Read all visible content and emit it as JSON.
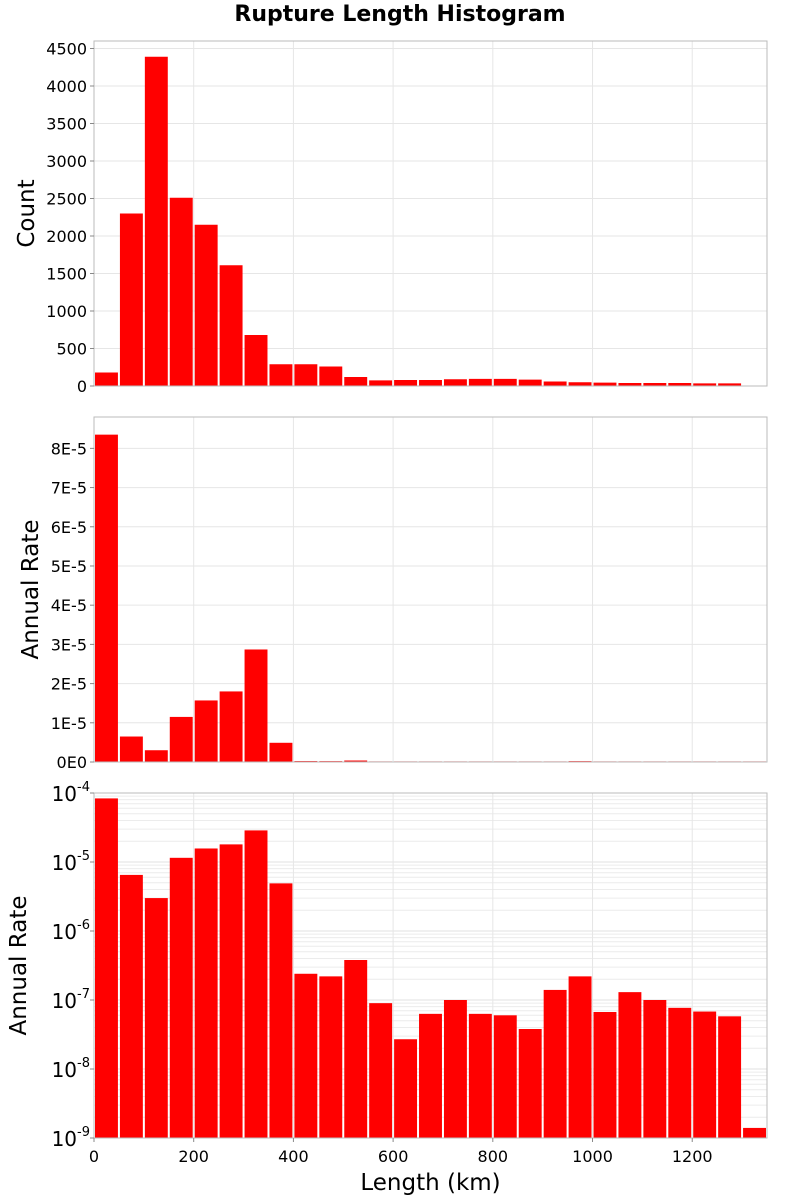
{
  "chart_data": {
    "title": "Rupture Length Histogram",
    "type": "bar",
    "xlabel": "Length (km)",
    "xlim": [
      0,
      1350
    ],
    "x_tick_values": [
      0,
      200,
      400,
      600,
      800,
      1000,
      1200
    ],
    "x_tick_labels": [
      "0",
      "200",
      "400",
      "600",
      "800",
      "1000",
      "1200"
    ],
    "bin_width": 50,
    "bin_starts": [
      0,
      50,
      100,
      150,
      200,
      250,
      300,
      350,
      400,
      450,
      500,
      550,
      600,
      650,
      700,
      750,
      800,
      850,
      900,
      950,
      1000,
      1050,
      1100,
      1150,
      1200,
      1250,
      1300
    ],
    "bar_color": "#ff0000",
    "panels": [
      {
        "name": "count",
        "ylabel": "Count",
        "scale": "linear",
        "ylim": [
          0,
          4600
        ],
        "y_tick_values": [
          0,
          500,
          1000,
          1500,
          2000,
          2500,
          3000,
          3500,
          4000,
          4500
        ],
        "y_tick_labels": [
          "0",
          "500",
          "1000",
          "1500",
          "2000",
          "2500",
          "3000",
          "3500",
          "4000",
          "4500"
        ],
        "values": [
          180,
          2300,
          4390,
          2510,
          2150,
          1610,
          680,
          290,
          290,
          260,
          120,
          75,
          80,
          80,
          90,
          95,
          95,
          85,
          60,
          50,
          45,
          40,
          40,
          40,
          35,
          35,
          0
        ]
      },
      {
        "name": "annual-rate-linear",
        "ylabel": "Annual Rate",
        "scale": "linear",
        "ylim": [
          0,
          8.8e-05
        ],
        "y_tick_values": [
          0,
          1e-05,
          2e-05,
          3e-05,
          4e-05,
          5e-05,
          6e-05,
          7e-05,
          8e-05
        ],
        "y_tick_labels": [
          "0E0",
          "1E-5",
          "2E-5",
          "3E-5",
          "4E-5",
          "5E-5",
          "6E-5",
          "7E-5",
          "8E-5"
        ],
        "values": [
          8.35e-05,
          6.5e-06,
          3e-06,
          1.15e-05,
          1.57e-05,
          1.8e-05,
          2.87e-05,
          4.9e-06,
          2.4e-07,
          2.2e-07,
          3.8e-07,
          9e-08,
          2.7e-08,
          6.3e-08,
          1e-07,
          6.3e-08,
          6e-08,
          3.8e-08,
          1.4e-07,
          2.2e-07,
          6.7e-08,
          1.3e-07,
          1e-07,
          7.7e-08,
          6.8e-08,
          5.8e-08,
          1.4e-09
        ]
      },
      {
        "name": "annual-rate-log",
        "ylabel": "Annual Rate",
        "scale": "log",
        "ylim": [
          1e-09,
          0.0001
        ],
        "y_tick_values": [
          0.0001,
          1e-05,
          1e-06,
          1e-07,
          1e-08,
          1e-09
        ],
        "y_tick_bases": [
          "10",
          "10",
          "10",
          "10",
          "10",
          "10"
        ],
        "y_tick_exponents": [
          "-4",
          "-5",
          "-6",
          "-7",
          "-8",
          "-9"
        ],
        "values": [
          8.35e-05,
          6.5e-06,
          3e-06,
          1.15e-05,
          1.57e-05,
          1.8e-05,
          2.87e-05,
          4.9e-06,
          2.4e-07,
          2.2e-07,
          3.8e-07,
          9e-08,
          2.7e-08,
          6.3e-08,
          1e-07,
          6.3e-08,
          6e-08,
          3.8e-08,
          1.4e-07,
          2.2e-07,
          6.7e-08,
          1.3e-07,
          1e-07,
          7.7e-08,
          6.8e-08,
          5.8e-08,
          1.4e-09
        ]
      }
    ]
  }
}
